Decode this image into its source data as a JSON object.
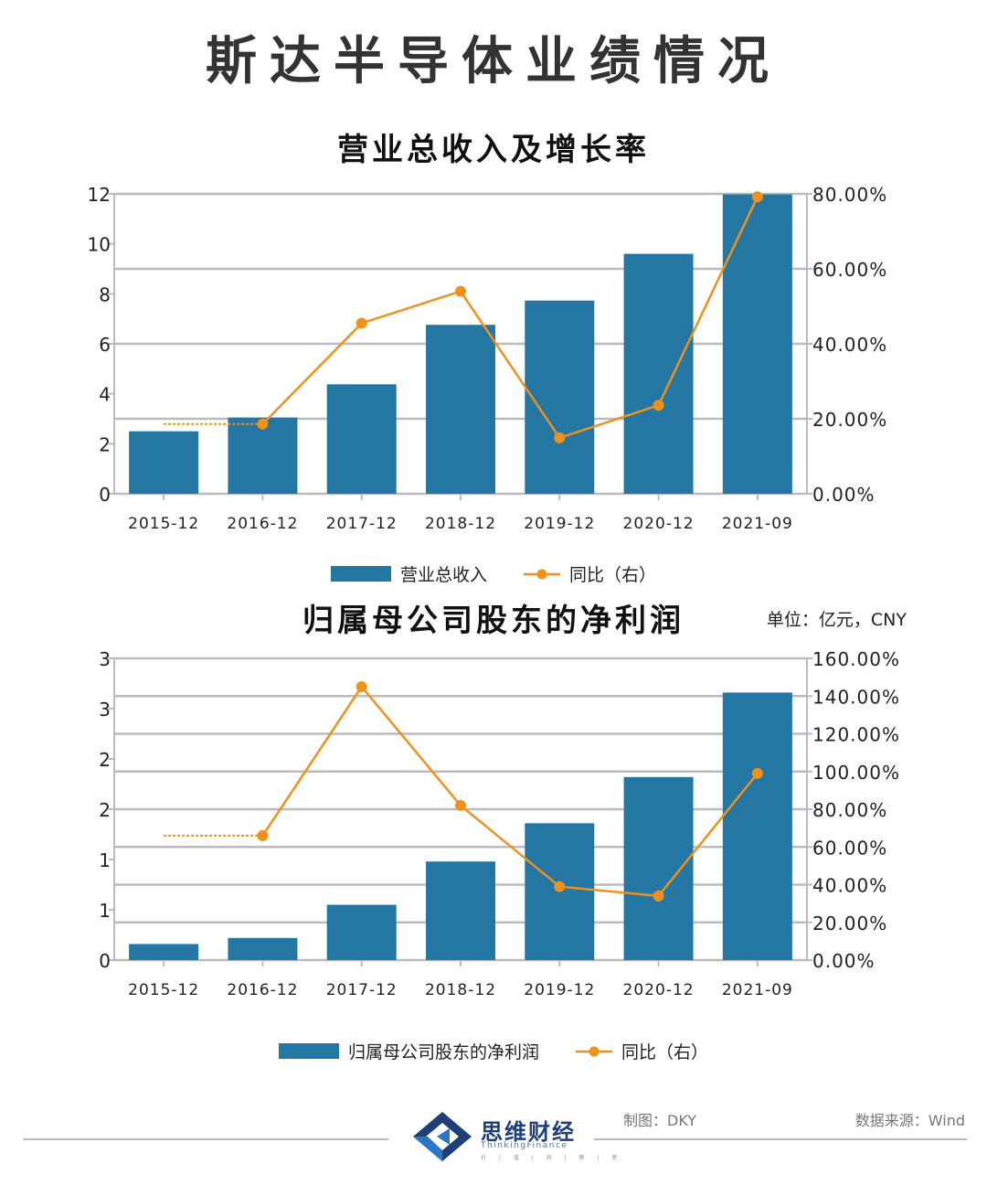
{
  "page": {
    "title": "斯达半导体业绩情况"
  },
  "colors": {
    "bar": "#2476a3",
    "line": "#f0911b",
    "grid": "#bbbbbb",
    "text": "#222222"
  },
  "chart_data": [
    {
      "type": "bar",
      "title": "营业总收入及增长率",
      "categories": [
        "2015-12",
        "2016-12",
        "2017-12",
        "2018-12",
        "2019-12",
        "2020-12",
        "2021-09"
      ],
      "series": [
        {
          "name": "营业总收入",
          "type": "bar",
          "axis": "left",
          "values": [
            2.5,
            3.05,
            4.38,
            6.76,
            7.73,
            9.6,
            11.98
          ]
        },
        {
          "name": "同比（右）",
          "type": "line",
          "axis": "right",
          "values": [
            null,
            18.6,
            45.5,
            54.0,
            14.9,
            23.6,
            79.2
          ],
          "dashed_lead_in": true
        }
      ],
      "y_left": {
        "min": 0,
        "max": 12,
        "ticks": [
          "0",
          "2",
          "4",
          "6",
          "8",
          "10",
          "12"
        ]
      },
      "y_right": {
        "min": 0,
        "max": 80,
        "ticks": [
          "0.00%",
          "20.00%",
          "40.00%",
          "60.00%",
          "80.00%"
        ]
      },
      "legend": {
        "position": "bottom",
        "bar_label": "营业总收入",
        "line_label": "同比（右）"
      },
      "grid": true
    },
    {
      "type": "bar",
      "title": "归属母公司股东的净利润",
      "unit_note": "单位：亿元，CNY",
      "categories": [
        "2015-12",
        "2016-12",
        "2017-12",
        "2018-12",
        "2019-12",
        "2020-12",
        "2021-09"
      ],
      "series": [
        {
          "name": "归属母公司股东的净利润",
          "type": "bar",
          "axis": "left",
          "values": [
            0.16,
            0.22,
            0.55,
            0.98,
            1.36,
            1.82,
            2.66
          ]
        },
        {
          "name": "同比（右）",
          "type": "line",
          "axis": "right",
          "values": [
            null,
            66.0,
            145.0,
            82.0,
            39.0,
            34.0,
            99.0
          ],
          "dashed_lead_in": true
        }
      ],
      "y_left": {
        "min": 0,
        "max": 3,
        "ticks": [
          "0",
          "1",
          "1",
          "2",
          "2",
          "3",
          "3"
        ]
      },
      "y_right": {
        "min": 0,
        "max": 160,
        "ticks": [
          "0.00%",
          "20.00%",
          "40.00%",
          "60.00%",
          "80.00%",
          "100.00%",
          "120.00%",
          "140.00%",
          "160.00%"
        ]
      },
      "legend": {
        "position": "bottom",
        "bar_label": "归属母公司股东的净利润",
        "line_label": "同比（右）"
      },
      "grid": true
    }
  ],
  "footer": {
    "brand_name": "思维财经",
    "brand_sub": "ThinkingFinance",
    "brand_slogan": "价 | 值 | 洞 | 察 | 者",
    "maker": "制图：DKY",
    "source": "数据来源：Wind"
  }
}
